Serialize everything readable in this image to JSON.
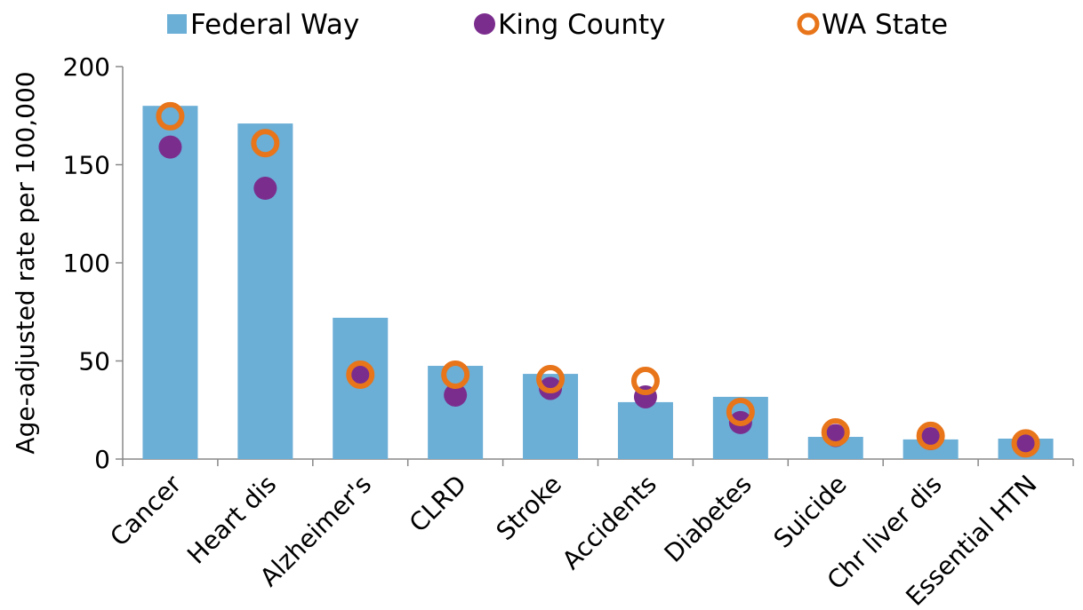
{
  "chart_data": {
    "type": "bar",
    "y_label": "Age-adjusted rate per 100,000",
    "categories": [
      "Cancer",
      "Heart dis",
      "Alzheimer's",
      "CLRD",
      "Stroke",
      "Accidents",
      "Diabetes",
      "Suicide",
      "Chr liver dis",
      "Essential HTN"
    ],
    "series": [
      {
        "name": "Federal Way",
        "color": "#6baed6",
        "marker": "bar",
        "values": [
          180,
          171,
          72,
          47.5,
          43.4,
          29,
          31.7,
          11.3,
          10,
          10.4
        ]
      },
      {
        "name": "King County",
        "color": "#7b2d8e",
        "marker": "dot",
        "values": [
          159,
          138,
          43,
          32.6,
          36,
          31.7,
          18.6,
          12,
          10.4,
          7
        ]
      },
      {
        "name": "WA State",
        "color": "#e8751a",
        "marker": "ring",
        "values": [
          174.7,
          161,
          43,
          43,
          40.7,
          39.8,
          24,
          13.6,
          11.8,
          8
        ]
      }
    ],
    "ylim": [
      0,
      200
    ],
    "yticks": [
      0,
      50,
      100,
      150,
      200
    ],
    "legend": "top"
  }
}
